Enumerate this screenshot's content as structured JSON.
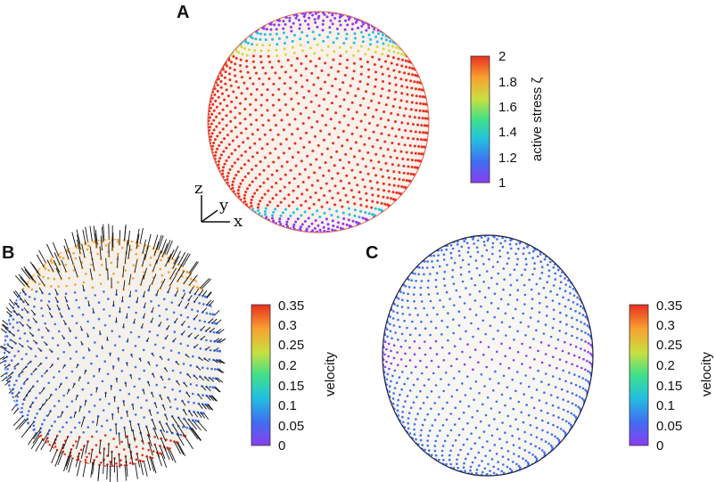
{
  "panels": [
    {
      "letter": "A",
      "colorbar": {
        "label": "active stress ζ",
        "ticks": [
          "2",
          "1.8",
          "1.6",
          "1.4",
          "1.2",
          "1"
        ]
      }
    },
    {
      "letter": "B",
      "colorbar": {
        "label": "velocity",
        "ticks": [
          "0.35",
          "0.3",
          "0.25",
          "0.2",
          "0.15",
          "0.1",
          "0.05",
          "0"
        ]
      }
    },
    {
      "letter": "C",
      "colorbar": {
        "label": "velocity",
        "ticks": [
          "0.35",
          "0.3",
          "0.25",
          "0.2",
          "0.15",
          "0.1",
          "0.05",
          "0"
        ]
      }
    }
  ],
  "axes_triad": {
    "z": "z",
    "y": "y",
    "x": "x"
  },
  "colormap": [
    "#8b3cf0",
    "#3f6ff0",
    "#22c0e0",
    "#3fe08a",
    "#c8e040",
    "#f8a030",
    "#e83020"
  ]
}
